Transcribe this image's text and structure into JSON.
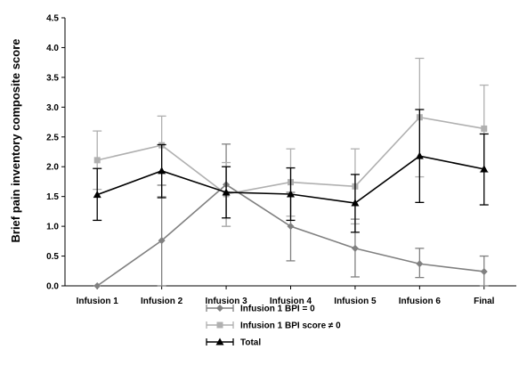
{
  "chart_data": {
    "type": "line",
    "title": "",
    "xlabel": "",
    "ylabel": "Brief pain inventory composite score",
    "categories": [
      "Infusion 1",
      "Infusion 2",
      "Infusion 3",
      "Infusion 4",
      "Infusion 5",
      "Infusion 6",
      "Final"
    ],
    "ylim": [
      0,
      4.5
    ],
    "yticks": [
      "0.0",
      "0.5",
      "1.0",
      "1.5",
      "2.0",
      "2.5",
      "3.0",
      "3.5",
      "4.0",
      "4.5"
    ],
    "grid": false,
    "legend_position": "bottom",
    "series": [
      {
        "name": "Infusion 1 BPI = 0",
        "color": "#808080",
        "marker": "diamond",
        "values": [
          0.0,
          0.76,
          1.7,
          1.0,
          0.63,
          0.37,
          0.24
        ],
        "err_low": [
          0.0,
          0.0,
          1.0,
          0.42,
          0.15,
          0.14,
          0.0
        ],
        "err_high": [
          0.0,
          1.69,
          2.38,
          1.57,
          1.12,
          0.63,
          0.5
        ]
      },
      {
        "name": "Infusion 1 BPI score ≠ 0",
        "color": "#b0b0b0",
        "marker": "square",
        "values": [
          2.11,
          2.36,
          1.54,
          1.74,
          1.67,
          2.83,
          2.64
        ],
        "err_low": [
          1.62,
          1.5,
          1.0,
          1.17,
          1.04,
          1.83,
          1.91
        ],
        "err_high": [
          2.6,
          2.85,
          2.07,
          2.3,
          2.3,
          3.82,
          3.37
        ]
      },
      {
        "name": "Total",
        "color": "#000000",
        "marker": "triangle",
        "values": [
          1.53,
          1.93,
          1.57,
          1.54,
          1.39,
          2.18,
          1.96
        ],
        "err_low": [
          1.1,
          1.48,
          1.14,
          1.1,
          0.9,
          1.4,
          1.36
        ],
        "err_high": [
          1.97,
          2.37,
          2.0,
          1.98,
          1.87,
          2.96,
          2.55
        ]
      }
    ]
  }
}
